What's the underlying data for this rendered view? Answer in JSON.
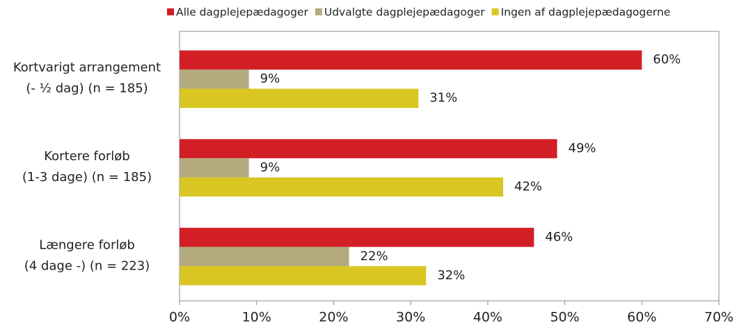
{
  "chart_data": {
    "type": "barh",
    "categories": [
      [
        "Kortvarigt arrangement",
        "(- ½ dag) (n = 185)"
      ],
      [
        "Kortere forløb",
        "(1-3 dage) (n = 185)"
      ],
      [
        "Længere forløb",
        "(4 dage -) (n = 223)"
      ]
    ],
    "series": [
      {
        "name": "Alle dagplejepædagoger",
        "color": "#d21f26",
        "values": [
          60,
          49,
          46
        ],
        "value_labels": [
          "60%",
          "49%",
          "46%"
        ]
      },
      {
        "name": "Udvalgte dagplejepædagoger",
        "color": "#b3aa7e",
        "values": [
          9,
          9,
          22
        ],
        "value_labels": [
          "9%",
          "9%",
          "22%"
        ]
      },
      {
        "name": "Ingen af dagplejepædagogerne",
        "color": "#d9c622",
        "values": [
          31,
          42,
          32
        ],
        "value_labels": [
          "31%",
          "42%",
          "32%"
        ]
      }
    ],
    "xlim": [
      0,
      70
    ],
    "xticks": [
      {
        "value": 0,
        "label": "0%"
      },
      {
        "value": 10,
        "label": "10%"
      },
      {
        "value": 20,
        "label": "20%"
      },
      {
        "value": 30,
        "label": "30%"
      },
      {
        "value": 40,
        "label": "40%"
      },
      {
        "value": 50,
        "label": "50%"
      },
      {
        "value": 60,
        "label": "60%"
      },
      {
        "value": 70,
        "label": "70%"
      }
    ],
    "legend": "top"
  }
}
